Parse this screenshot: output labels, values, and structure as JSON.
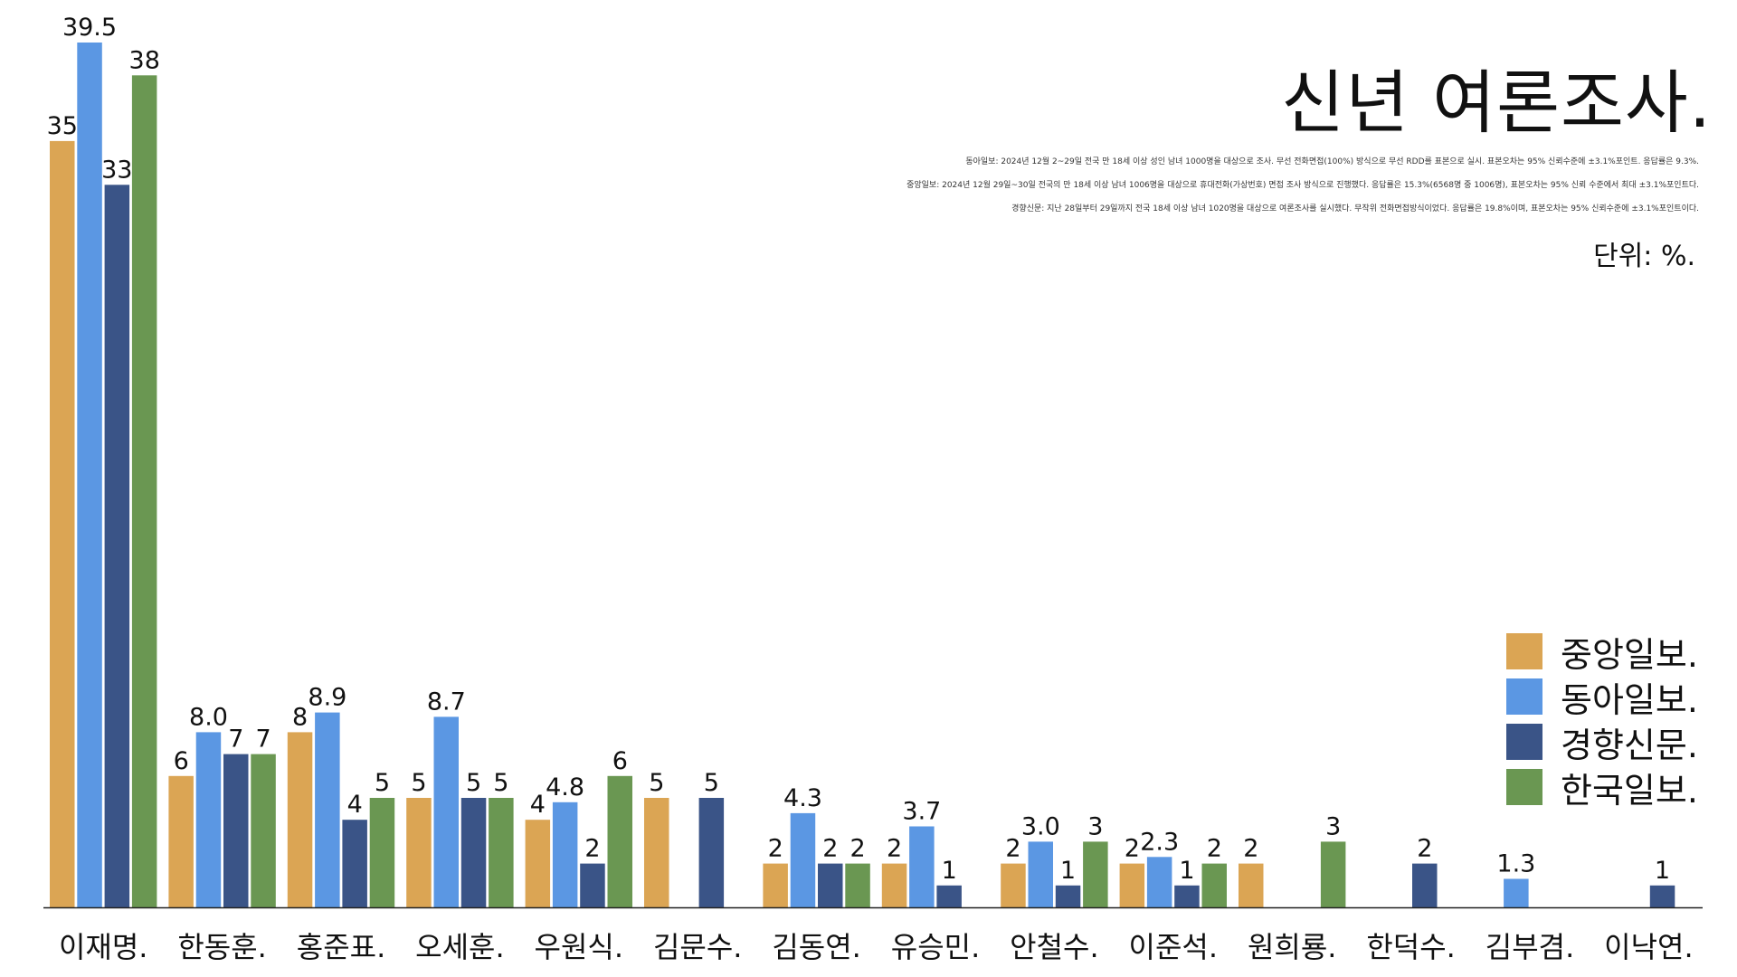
{
  "title": "신년 여론조사.",
  "notes": [
    "동아일보: 2024년 12월 2~29일 전국 만 18세 이상 성인 남녀 1000명을 대상으로 조사. 무선 전화면접(100%) 방식으로 무선 RDD를 표본으로 실시. 표본오차는 95% 신뢰수준에 ±3.1%포인트. 응답률은 9.3%.",
    "중앙일보: 2024년 12월 29일~30일 전국의 만 18세 이상 남녀 1006명을 대상으로 휴대전화(가상번호) 면접 조사 방식으로 진행했다. 응답률은 15.3%(6568명 중 1006명), 표본오차는 95% 신뢰 수준에서 최대 ±3.1%포인트다.",
    "경향신문: 지난 28일부터 29일까지 전국 18세 이상 남녀 1020명을 대상으로 여론조사를 실시했다. 무작위 전화면접방식이었다. 응답률은 19.8%이며, 표본오차는 95% 신뢰수준에 ±3.1%포인트이다."
  ],
  "unit": "단위: %.",
  "chart_data": {
    "type": "bar",
    "title": "신년 여론조사.",
    "xlabel": "",
    "ylabel": "",
    "ylim": [
      0,
      39.5
    ],
    "grid": false,
    "legend_position": "bottom-right",
    "categories": [
      "이재명.",
      "한동훈.",
      "홍준표.",
      "오세훈.",
      "우원식.",
      "김문수.",
      "김동연.",
      "유승민.",
      "안철수.",
      "이준석.",
      "원희룡.",
      "한덕수.",
      "김부겸.",
      "이낙연."
    ],
    "series": [
      {
        "name": "중앙일보.",
        "color": "#DBA554",
        "values": [
          35,
          6,
          8,
          5,
          4,
          5,
          2,
          2,
          2,
          2,
          2,
          null,
          null,
          null
        ],
        "labels": [
          "35",
          "6",
          "8",
          "5",
          "4",
          "5",
          "2",
          "2",
          "2",
          "2",
          "2",
          null,
          null,
          null
        ]
      },
      {
        "name": "동아일보.",
        "color": "#5B97E3",
        "values": [
          39.5,
          8.0,
          8.9,
          8.7,
          4.8,
          null,
          4.3,
          3.7,
          3.0,
          2.3,
          null,
          null,
          1.3,
          null
        ],
        "labels": [
          "39.5",
          "8.0",
          "8.9",
          "8.7",
          "4.8",
          null,
          "4.3",
          "3.7",
          "3.0",
          "2.3",
          null,
          null,
          "1.3",
          null
        ]
      },
      {
        "name": "경향신문.",
        "color": "#3A5487",
        "values": [
          33,
          7,
          4,
          5,
          2,
          5,
          2,
          1,
          1,
          1,
          null,
          2,
          null,
          1
        ],
        "labels": [
          "33",
          "7",
          "4",
          "5",
          "2",
          "5",
          "2",
          "1",
          "1",
          "1",
          null,
          "2",
          null,
          "1"
        ]
      },
      {
        "name": "한국일보.",
        "color": "#6A9752",
        "values": [
          38,
          7,
          5,
          5,
          6,
          null,
          2,
          null,
          3,
          2,
          3,
          null,
          null,
          null
        ],
        "labels": [
          "38",
          "7",
          "5",
          "5",
          "6",
          null,
          "2",
          null,
          "3",
          "2",
          "3",
          null,
          null,
          null
        ]
      }
    ]
  }
}
